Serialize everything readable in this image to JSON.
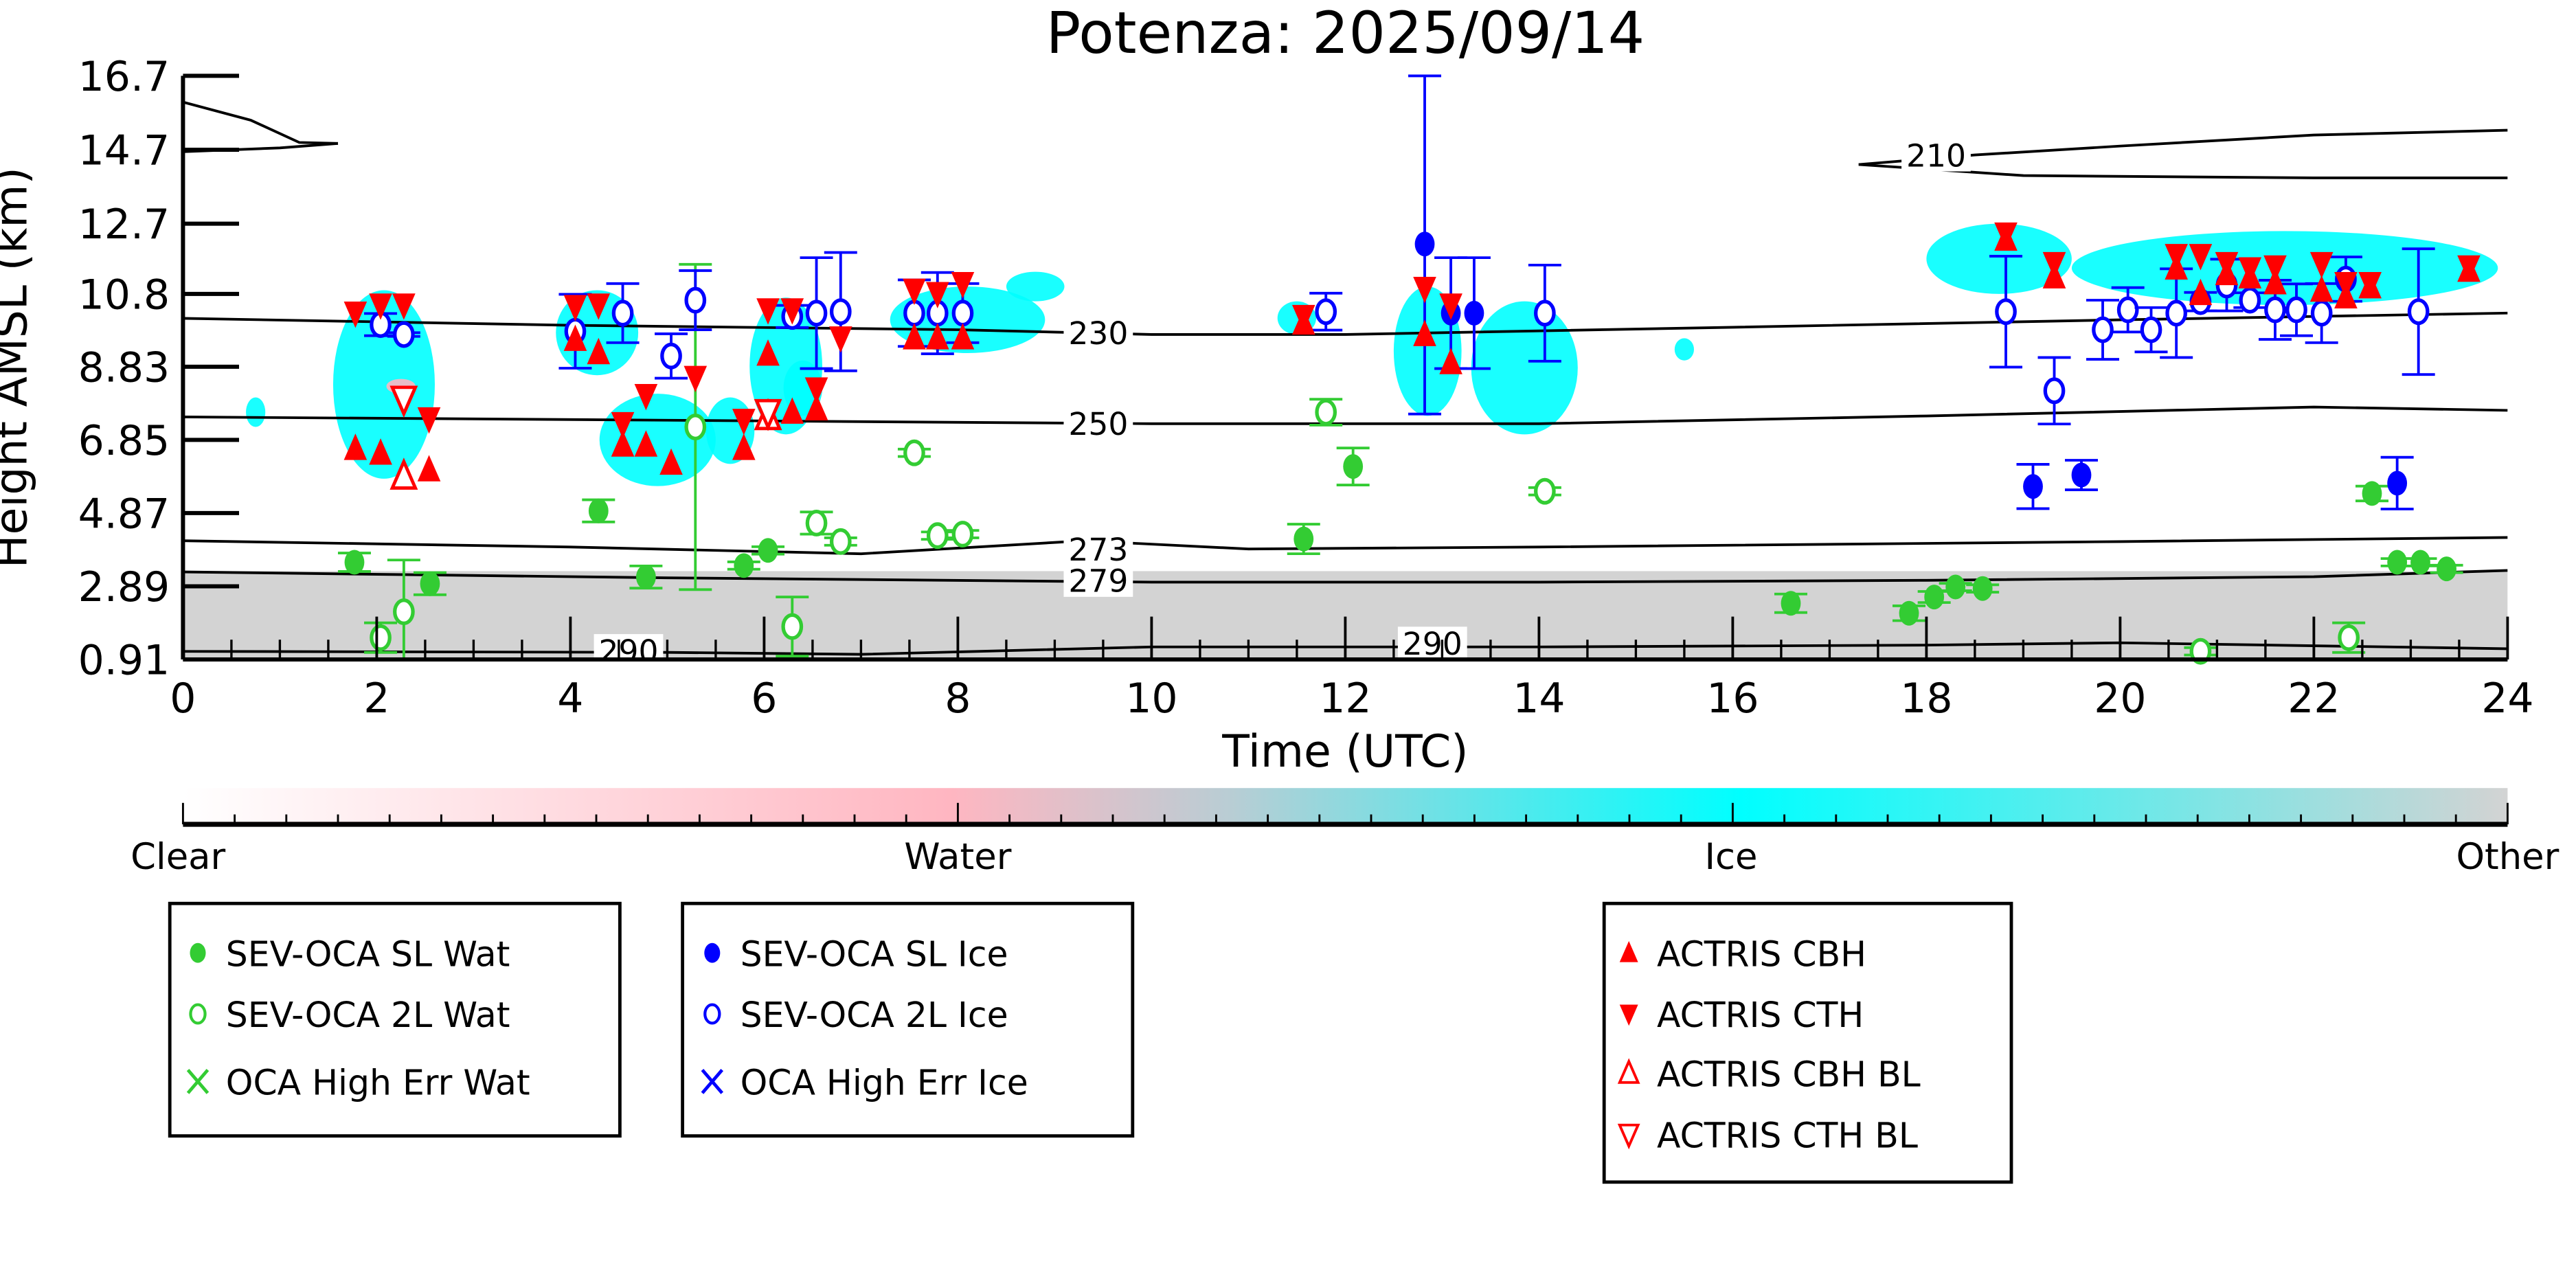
{
  "chart_data": {
    "type": "scatter",
    "title": "Potenza: 2025/09/14",
    "xlabel": "Time (UTC)",
    "ylabel": "Height AMSL (km)",
    "xlim": [
      0,
      24
    ],
    "ylim": [
      0.91,
      16.7
    ],
    "xticks": [
      "0",
      "2",
      "4",
      "6",
      "8",
      "10",
      "12",
      "14",
      "16",
      "18",
      "20",
      "22",
      "24"
    ],
    "yticks": [
      "16.7",
      "14.7",
      "12.7",
      "10.8",
      "8.83",
      "6.85",
      "4.87",
      "2.89",
      "0.91"
    ],
    "colors": {
      "water": "#33cc33",
      "ice": "#0000ff",
      "actris": "#ff0000",
      "cyan": "#00ffff",
      "pink": "#ffb6c1",
      "gray": "#d3d3d3"
    },
    "colorbar": {
      "labels": [
        "Clear",
        "Water",
        "Ice",
        "Other"
      ]
    },
    "cloud_mask_regions": {
      "ice": [
        [
          0.65,
          0.85,
          7.2,
          8.0
        ],
        [
          1.55,
          2.6,
          5.8,
          10.9
        ],
        [
          3.85,
          4.7,
          8.6,
          10.9
        ],
        [
          4.3,
          5.5,
          5.6,
          8.1
        ],
        [
          5.4,
          5.9,
          6.2,
          8.0
        ],
        [
          5.85,
          6.6,
          7.0,
          10.7
        ],
        [
          6.2,
          6.6,
          7.5,
          9.0
        ],
        [
          7.3,
          8.9,
          9.2,
          11.0
        ],
        [
          8.5,
          9.1,
          10.6,
          11.4
        ],
        [
          11.3,
          11.7,
          9.7,
          10.6
        ],
        [
          12.5,
          13.2,
          7.5,
          11.0
        ],
        [
          13.3,
          14.4,
          7.0,
          10.6
        ],
        [
          15.4,
          15.6,
          9.0,
          9.6
        ],
        [
          18.0,
          19.5,
          10.8,
          12.7
        ],
        [
          19.5,
          23.9,
          10.5,
          12.5
        ]
      ],
      "water": [
        [
          2.1,
          2.4,
          8.1,
          8.5
        ]
      ],
      "other": [
        [
          0,
          24,
          0.91,
          3.3
        ]
      ]
    },
    "isotherms": [
      {
        "label": "230",
        "points": [
          [
            0,
            10.14
          ],
          [
            4,
            9.95
          ],
          [
            8,
            9.83
          ],
          [
            10,
            9.7
          ],
          [
            12,
            9.7
          ],
          [
            16,
            9.9
          ],
          [
            20,
            10.1
          ],
          [
            24,
            10.28
          ]
        ]
      },
      {
        "label": "250",
        "points": [
          [
            0,
            7.47
          ],
          [
            5,
            7.38
          ],
          [
            10,
            7.29
          ],
          [
            14,
            7.29
          ],
          [
            18,
            7.5
          ],
          [
            22,
            7.74
          ],
          [
            24,
            7.65
          ]
        ]
      },
      {
        "label": "273",
        "points": [
          [
            0,
            4.12
          ],
          [
            4,
            3.95
          ],
          [
            7,
            3.77
          ],
          [
            9.3,
            4.12
          ],
          [
            11,
            3.9
          ],
          [
            14,
            3.95
          ],
          [
            20,
            4.1
          ],
          [
            24,
            4.21
          ]
        ]
      },
      {
        "label": "279",
        "points": [
          [
            0,
            3.28
          ],
          [
            5,
            3.12
          ],
          [
            10,
            3.0
          ],
          [
            14,
            3.0
          ],
          [
            18,
            3.05
          ],
          [
            22,
            3.15
          ],
          [
            24,
            3.32
          ]
        ]
      },
      {
        "label": "290",
        "points": [
          [
            0,
            1.13
          ],
          [
            5,
            1.1
          ],
          [
            7,
            1.05
          ],
          [
            10,
            1.25
          ],
          [
            14,
            1.25
          ],
          [
            18,
            1.3
          ],
          [
            20,
            1.36
          ],
          [
            24,
            1.2
          ]
        ]
      },
      {
        "label": "210",
        "points": [
          [
            17.3,
            14.3
          ],
          [
            18.5,
            14.56
          ],
          [
            20,
            14.8
          ],
          [
            22,
            15.1
          ],
          [
            24,
            15.23
          ]
        ]
      },
      {
        "label": "",
        "points": [
          [
            17.3,
            14.3
          ],
          [
            19,
            14.0
          ],
          [
            22,
            13.94
          ],
          [
            24,
            13.94
          ]
        ]
      },
      {
        "label": "",
        "points": [
          [
            0,
            15.99
          ],
          [
            0.7,
            15.5
          ],
          [
            1.2,
            14.9
          ],
          [
            1.6,
            14.87
          ]
        ]
      },
      {
        "label": "",
        "points": [
          [
            0,
            14.65
          ],
          [
            1.0,
            14.75
          ],
          [
            1.6,
            14.87
          ]
        ]
      }
    ],
    "contour_labels": [
      {
        "text": "230",
        "t": 9.45,
        "h": 9.75
      },
      {
        "text": "250",
        "t": 9.45,
        "h": 7.3
      },
      {
        "text": "273",
        "t": 9.45,
        "h": 3.9
      },
      {
        "text": "279",
        "t": 9.45,
        "h": 3.05
      },
      {
        "text": "290",
        "t": 4.6,
        "h": 1.15
      },
      {
        "text": "290",
        "t": 12.9,
        "h": 1.35
      },
      {
        "text": "210",
        "t": 18.1,
        "h": 14.56
      }
    ],
    "series": [
      {
        "name": "SEV-OCA SL Wat",
        "marker": "filled-circle",
        "color": "#33cc33",
        "points": [
          [
            1.77,
            3.54,
            0.25
          ],
          [
            2.55,
            2.96,
            0.3
          ],
          [
            4.29,
            4.93,
            0.3
          ],
          [
            4.78,
            3.14,
            0.3
          ],
          [
            5.79,
            3.45,
            0.1
          ],
          [
            6.04,
            3.86,
            0.1
          ],
          [
            11.57,
            4.17,
            0.4
          ],
          [
            12.08,
            6.13,
            0.5
          ],
          [
            16.6,
            2.43,
            0.25
          ],
          [
            17.82,
            2.16,
            0.2
          ],
          [
            18.08,
            2.6,
            0.15
          ],
          [
            18.3,
            2.87,
            0.1
          ],
          [
            18.58,
            2.83,
            0.1
          ],
          [
            22.6,
            5.4,
            0.2
          ],
          [
            22.86,
            3.54,
            0.1
          ],
          [
            23.1,
            3.54,
            0.1
          ],
          [
            23.37,
            3.36,
            0.1
          ]
        ]
      },
      {
        "name": "SEV-OCA 2L Wat",
        "marker": "open-circle",
        "color": "#33cc33",
        "points": [
          [
            2.04,
            1.5,
            0.4
          ],
          [
            2.28,
            2.2,
            1.4
          ],
          [
            5.29,
            7.2,
            4.4
          ],
          [
            6.29,
            1.8,
            0.8
          ],
          [
            6.54,
            4.6,
            0.3
          ],
          [
            6.79,
            4.1,
            0.1
          ],
          [
            7.55,
            6.5,
            0.1
          ],
          [
            7.79,
            4.26,
            0.1
          ],
          [
            8.05,
            4.3,
            0.1
          ],
          [
            11.8,
            7.6,
            0.35
          ],
          [
            14.06,
            5.46,
            0.1
          ],
          [
            20.83,
            1.13,
            0.1
          ],
          [
            22.36,
            1.5,
            0.4
          ]
        ]
      },
      {
        "name": "OCA High Err Wat",
        "marker": "x",
        "color": "#33cc33",
        "points": []
      },
      {
        "name": "SEV-OCA SL Ice",
        "marker": "filled-circle",
        "color": "#0000ff",
        "points": [
          [
            12.82,
            12.15,
            4.6
          ],
          [
            13.09,
            10.28,
            1.5
          ],
          [
            13.33,
            10.28,
            1.5
          ],
          [
            19.1,
            5.59,
            0.6
          ],
          [
            19.6,
            5.9,
            0.4
          ],
          [
            22.86,
            5.68,
            0.7
          ]
        ]
      },
      {
        "name": "SEV-OCA 2L Ice",
        "marker": "open-circle",
        "color": "#0000ff",
        "points": [
          [
            2.04,
            9.97,
            0.3
          ],
          [
            2.28,
            9.7,
            0.05
          ],
          [
            4.05,
            9.79,
            1.0
          ],
          [
            4.54,
            10.28,
            0.8
          ],
          [
            5.04,
            9.12,
            0.6
          ],
          [
            5.29,
            10.63,
            0.8
          ],
          [
            6.29,
            10.19,
            0.3
          ],
          [
            6.54,
            10.28,
            1.5
          ],
          [
            6.79,
            10.32,
            1.6
          ],
          [
            7.55,
            10.28,
            0.9
          ],
          [
            7.79,
            10.28,
            1.1
          ],
          [
            8.05,
            10.28,
            0.8
          ],
          [
            11.8,
            10.32,
            0.5
          ],
          [
            14.06,
            10.28,
            1.3
          ],
          [
            18.82,
            10.32,
            1.5
          ],
          [
            19.32,
            8.18,
            0.9
          ],
          [
            19.82,
            9.83,
            0.8
          ],
          [
            20.08,
            10.37,
            0.6
          ],
          [
            20.32,
            9.83,
            0.6
          ],
          [
            20.58,
            10.28,
            1.2
          ],
          [
            20.83,
            10.59,
            0.25
          ],
          [
            21.1,
            11.04,
            0.7
          ],
          [
            21.34,
            10.63,
            0.2
          ],
          [
            21.6,
            10.37,
            0.8
          ],
          [
            21.82,
            10.37,
            0.7
          ],
          [
            22.08,
            10.28,
            0.8
          ],
          [
            22.33,
            11.2,
            0.6
          ],
          [
            23.08,
            10.32,
            1.7
          ]
        ]
      },
      {
        "name": "OCA High Err Ice",
        "marker": "x",
        "color": "#0000ff",
        "points": []
      },
      {
        "name": "ACTRIS CBH",
        "marker": "filled-triangle-up",
        "color": "#ff0000",
        "points": [
          [
            1.78,
            6.62
          ],
          [
            2.04,
            6.49
          ],
          [
            2.54,
            6.04
          ],
          [
            4.05,
            9.57
          ],
          [
            4.29,
            9.21
          ],
          [
            4.54,
            6.71
          ],
          [
            4.78,
            6.71
          ],
          [
            5.04,
            6.22
          ],
          [
            5.79,
            6.62
          ],
          [
            6.04,
            9.17
          ],
          [
            6.29,
            7.6
          ],
          [
            6.54,
            7.69
          ],
          [
            7.55,
            9.61
          ],
          [
            7.79,
            9.61
          ],
          [
            8.05,
            9.61
          ],
          [
            11.57,
            10.01
          ],
          [
            12.82,
            9.7
          ],
          [
            13.09,
            8.94
          ],
          [
            18.82,
            12.28
          ],
          [
            19.32,
            11.26
          ],
          [
            20.58,
            11.5
          ],
          [
            20.83,
            10.81
          ],
          [
            21.1,
            11.35
          ],
          [
            21.34,
            11.26
          ],
          [
            21.6,
            11.1
          ],
          [
            22.08,
            10.9
          ],
          [
            22.33,
            10.72
          ],
          [
            22.58,
            10.99
          ],
          [
            23.6,
            11.44
          ]
        ]
      },
      {
        "name": "ACTRIS CTH",
        "marker": "filled-triangle-down",
        "color": "#ff0000",
        "points": [
          [
            1.78,
            10.28
          ],
          [
            2.04,
            10.5
          ],
          [
            2.28,
            10.5
          ],
          [
            2.54,
            7.42
          ],
          [
            4.05,
            10.46
          ],
          [
            4.29,
            10.5
          ],
          [
            4.54,
            7.29
          ],
          [
            4.78,
            8.05
          ],
          [
            5.29,
            8.54
          ],
          [
            5.79,
            7.38
          ],
          [
            6.04,
            10.37
          ],
          [
            6.29,
            10.37
          ],
          [
            6.54,
            8.23
          ],
          [
            6.79,
            9.61
          ],
          [
            7.55,
            10.9
          ],
          [
            7.79,
            10.81
          ],
          [
            8.05,
            11.08
          ],
          [
            11.57,
            10.19
          ],
          [
            12.82,
            10.95
          ],
          [
            13.09,
            10.5
          ],
          [
            18.82,
            12.42
          ],
          [
            19.32,
            11.62
          ],
          [
            20.58,
            11.84
          ],
          [
            20.83,
            11.84
          ],
          [
            21.1,
            11.62
          ],
          [
            21.34,
            11.48
          ],
          [
            21.6,
            11.53
          ],
          [
            22.08,
            11.62
          ],
          [
            22.33,
            11.08
          ],
          [
            22.58,
            11.08
          ],
          [
            23.6,
            11.53
          ]
        ]
      },
      {
        "name": "ACTRIS CBH BL",
        "marker": "open-triangle-up",
        "color": "#ff0000",
        "points": [
          [
            2.28,
            5.86
          ],
          [
            6.04,
            7.47
          ]
        ]
      },
      {
        "name": "ACTRIS CTH BL",
        "marker": "open-triangle-down",
        "color": "#ff0000",
        "points": [
          [
            2.28,
            7.96
          ],
          [
            6.04,
            7.6
          ]
        ]
      }
    ]
  }
}
